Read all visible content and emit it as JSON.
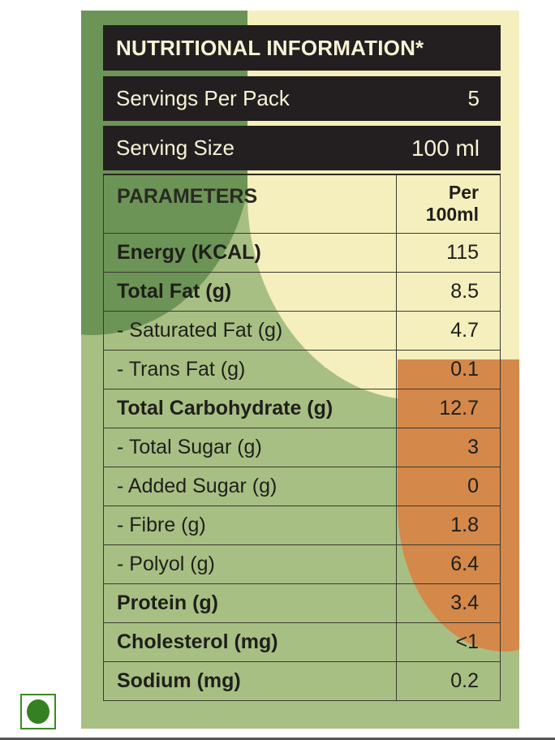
{
  "label": {
    "title": "NUTRITIONAL INFORMATION*",
    "servings_per_pack": {
      "label": "Servings Per Pack",
      "value": "5"
    },
    "serving_size": {
      "label": "Serving Size",
      "value": "100 ml"
    },
    "table": {
      "header": {
        "param": "PARAMETERS",
        "per_line1": "Per",
        "per_line2": "100ml"
      },
      "rows": [
        {
          "param": "Energy (KCAL)",
          "value": "115",
          "bold": true
        },
        {
          "param": "Total Fat (g)",
          "value": "8.5",
          "bold": true
        },
        {
          "param": "- Saturated Fat (g)",
          "value": "4.7",
          "bold": false
        },
        {
          "param": "- Trans Fat (g)",
          "value": "0.1",
          "bold": false
        },
        {
          "param": "Total Carbohydrate (g)",
          "value": "12.7",
          "bold": true
        },
        {
          "param": "- Total Sugar (g)",
          "value": "3",
          "bold": false
        },
        {
          "param": "- Added Sugar (g)",
          "value": "0",
          "bold": false
        },
        {
          "param": "- Fibre (g)",
          "value": "1.8",
          "bold": false
        },
        {
          "param": "- Polyol (g)",
          "value": "6.4",
          "bold": false
        },
        {
          "param": "Protein (g)",
          "value": "3.4",
          "bold": true
        },
        {
          "param": "Cholesterol (mg)",
          "value": "<1",
          "bold": true
        },
        {
          "param": "Sodium (mg)",
          "value": "0.2",
          "bold": true
        }
      ]
    }
  },
  "badge": {
    "icon": "veg-mark-icon",
    "color": "#358022"
  },
  "colors": {
    "dark_band": "#231f20",
    "cream": "#f5efbd",
    "green_light": "#a8bf84",
    "green_dark": "#6c9456",
    "orange": "#d4884a"
  }
}
